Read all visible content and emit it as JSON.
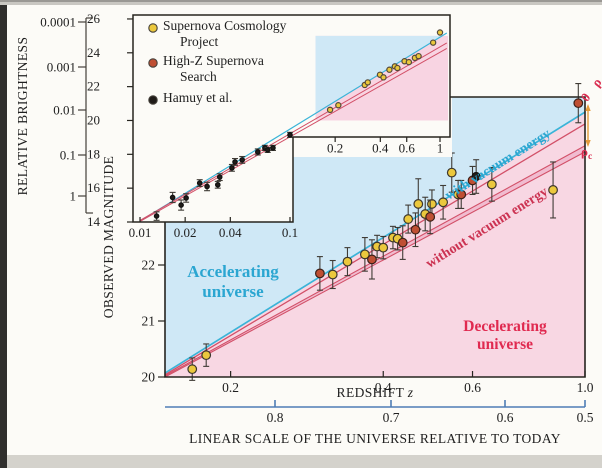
{
  "page": {
    "background": "#d4d2cc",
    "figure_background": "#fcfbf7",
    "left_edge_bar": "#302f2d"
  },
  "legend": {
    "items": [
      {
        "lines": [
          "Supernova Cosmology",
          "Project"
        ],
        "color": "#ebc83d",
        "marker": "circle"
      },
      {
        "lines": [
          "High-Z Supernova",
          "Search"
        ],
        "color": "#bf4f33",
        "marker": "circle"
      },
      {
        "lines": [
          "Hamuy et al."
        ],
        "color": "#1f1b18",
        "marker": "circle"
      }
    ]
  },
  "annotations": {
    "accelerating": [
      "Accelerating",
      "universe"
    ],
    "decelerating": [
      "Decelerating",
      "universe"
    ],
    "with_vacuum": "with vacuum energy",
    "without_vacuum": "without vacuum energy",
    "density_top": "0",
    "density_bottom_symbol": "ρ",
    "density_bottom_sub": "c",
    "observed_magnitude": "OBSERVED MAGNITUDE",
    "redshift_word": "REDSHIFT",
    "redshift_var": "z"
  },
  "brightness_axis": {
    "label": "RELATIVE BRIGHTNESS",
    "ticks": [
      "0.0001",
      "0.001",
      "0.01",
      "0.1",
      "1"
    ]
  },
  "scale_axis": {
    "label": "LINEAR SCALE OF THE UNIVERSE RELATIVE TO TODAY",
    "ticks": [
      "0.8",
      "0.7",
      "0.6",
      "0.5"
    ],
    "color": "#4e7cb5"
  },
  "chart_data": [
    {
      "id": "main-hubble-zoom",
      "type": "scatter",
      "xlabel": "REDSHIFT z",
      "ylabel": "OBSERVED MAGNITUDE",
      "xscale": "log",
      "xlim": [
        0.148,
        1.0
      ],
      "ylim": [
        20,
        25
      ],
      "grid": false,
      "xticks": [
        "0.2",
        "0.4",
        "0.6",
        "1.0"
      ],
      "xtick_values": [
        0.2,
        0.4,
        0.6,
        1.0
      ],
      "yticks": [
        "20",
        "21",
        "22"
      ],
      "ytick_values": [
        20,
        21,
        22
      ],
      "regions": [
        {
          "label": "Accelerating universe",
          "side": "above_with_vacuum_line",
          "fill": "#cfe8f6",
          "text_color": "#2ba6d1"
        },
        {
          "label": "Decelerating universe",
          "side": "below_with_vacuum_line",
          "fill": "#f8d7e3",
          "text_color": "#e02a50"
        }
      ],
      "lines": [
        {
          "label": "with vacuum energy",
          "color": "#3ab4d8",
          "width": 1.7,
          "points": [
            [
              0.148,
              20.07
            ],
            [
              1.0,
              24.73
            ]
          ]
        },
        {
          "label": "without vacuum energy, mass density 0",
          "color": "#d25068",
          "width": 1.3,
          "points": [
            [
              0.148,
              20.04
            ],
            [
              1.0,
              24.52
            ]
          ]
        },
        {
          "label": "without vacuum energy, mass density rho_c (upper)",
          "color": "#d25068",
          "width": 1.1,
          "points": [
            [
              0.148,
              20.02
            ],
            [
              1.0,
              24.13
            ]
          ]
        },
        {
          "label": "without vacuum energy, mass density rho_c (lower)",
          "color": "#d25068",
          "width": 1.1,
          "points": [
            [
              0.148,
              20.0
            ],
            [
              1.0,
              24.02
            ]
          ]
        }
      ],
      "band_between_rho_lines_fill": "#f1bcd0",
      "series": [
        {
          "name": "Supernova Cosmology Project",
          "marker": "circle",
          "color": "#ebc83d",
          "ring": "#3c362c",
          "points": [
            [
              0.168,
              20.14,
              0.2
            ],
            [
              0.179,
              20.39,
              0.2
            ],
            [
              0.318,
              21.83,
              0.25
            ],
            [
              0.34,
              22.06,
              0.25
            ],
            [
              0.368,
              22.19,
              0.3
            ],
            [
              0.389,
              22.33,
              0.2
            ],
            [
              0.4,
              22.31,
              0.2
            ],
            [
              0.418,
              22.49,
              0.2
            ],
            [
              0.427,
              22.47,
              0.2
            ],
            [
              0.448,
              22.82,
              0.25
            ],
            [
              0.469,
              23.09,
              0.45
            ],
            [
              0.484,
              22.91,
              0.3
            ],
            [
              0.499,
              23.09,
              0.25
            ],
            [
              0.525,
              23.12,
              0.3
            ],
            [
              0.546,
              23.65,
              0.35
            ],
            [
              0.562,
              23.26,
              0.25
            ],
            [
              0.655,
              23.44,
              0.3
            ],
            [
              0.865,
              23.34,
              0.5
            ]
          ]
        },
        {
          "name": "High-Z Supernova Search",
          "marker": "circle",
          "color": "#bf4f33",
          "ring": "#3c2018",
          "points": [
            [
              0.3,
              21.85,
              0.3
            ],
            [
              0.38,
              22.1,
              0.35
            ],
            [
              0.437,
              22.4,
              0.3
            ],
            [
              0.463,
              22.63,
              0.3
            ],
            [
              0.495,
              22.86,
              0.3
            ],
            [
              0.57,
              23.26,
              0.25
            ],
            [
              0.6,
              23.51,
              0.25
            ],
            [
              0.97,
              24.89,
              0.35
            ]
          ]
        },
        {
          "name": "dark point",
          "marker": "circle",
          "color": "#241f1b",
          "ring": "#161310",
          "points": [
            [
              0.61,
              23.58,
              0.3
            ]
          ]
        }
      ]
    },
    {
      "id": "inset-full-hubble",
      "type": "scatter",
      "xscale": "log",
      "xlim": [
        0.01,
        1.05
      ],
      "ylim": [
        14,
        26
      ],
      "ytick_values": [
        14,
        16,
        18,
        20,
        22,
        24,
        26
      ],
      "yticks": [
        "14",
        "16",
        "18",
        "20",
        "22",
        "24",
        "26"
      ],
      "xticks_lower": [
        "0.01",
        "0.02",
        "0.04",
        "0.1"
      ],
      "xtick_lower_values": [
        0.01,
        0.02,
        0.04,
        0.1
      ],
      "xticks_upper": [
        "0.2",
        "0.4",
        "0.6",
        "1"
      ],
      "xtick_upper_values": [
        0.2,
        0.4,
        0.6,
        1.0
      ],
      "zoom_region": {
        "x": [
          0.148,
          1.0
        ],
        "y": [
          20,
          25
        ],
        "fill_above": "#cfe8f6",
        "fill_below": "#f8d4e2"
      },
      "lines": [
        {
          "label": "with vacuum energy",
          "color": "#3ab4d8",
          "width": 1.2,
          "points": [
            [
              0.01,
              14.06
            ],
            [
              1.11,
              25.17
            ]
          ]
        },
        {
          "label": "without vacuum energy (upper)",
          "color": "#d25068",
          "width": 1.0,
          "points": [
            [
              0.01,
              14.09
            ],
            [
              1.11,
              24.58
            ]
          ]
        },
        {
          "label": "without vacuum energy (lower)",
          "color": "#d25068",
          "width": 1.0,
          "points": [
            [
              0.01,
              14.03
            ],
            [
              1.11,
              24.26
            ]
          ]
        }
      ],
      "series": [
        {
          "name": "Hamuy et al.",
          "marker": "circle",
          "color": "#1f1b18",
          "ring": "#111",
          "points": [
            [
              0.0129,
              14.35,
              0.25
            ],
            [
              0.0165,
              15.45,
              0.3
            ],
            [
              0.0188,
              15.0,
              0.3
            ],
            [
              0.0203,
              15.42,
              0.25
            ],
            [
              0.025,
              16.3,
              0.2
            ],
            [
              0.028,
              16.1,
              0.25
            ],
            [
              0.033,
              16.2,
              0.2
            ],
            [
              0.034,
              16.65,
              0.2
            ],
            [
              0.041,
              17.2,
              0.2
            ],
            [
              0.043,
              17.55,
              0.2
            ],
            [
              0.048,
              17.67,
              0.2
            ],
            [
              0.061,
              18.14,
              0.18
            ],
            [
              0.068,
              18.38,
              0.15
            ],
            [
              0.071,
              18.26,
              0.15
            ],
            [
              0.077,
              18.38,
              0.15
            ],
            [
              0.1,
              19.15,
              0.15
            ]
          ]
        },
        {
          "name": "high-redshift supernovae",
          "marker": "circle",
          "color": "#ebc83d",
          "ring": "#54493a",
          "points": [
            [
              0.185,
              20.63,
              0
            ],
            [
              0.21,
              20.9,
              0
            ],
            [
              0.315,
              22.1,
              0
            ],
            [
              0.33,
              22.25,
              0
            ],
            [
              0.398,
              22.7,
              0
            ],
            [
              0.42,
              22.55,
              0
            ],
            [
              0.46,
              23.0,
              0
            ],
            [
              0.5,
              23.2,
              0
            ],
            [
              0.52,
              23.1,
              0
            ],
            [
              0.58,
              23.5,
              0
            ],
            [
              0.62,
              23.45,
              0
            ],
            [
              0.68,
              23.7,
              0
            ],
            [
              0.72,
              23.8,
              0
            ],
            [
              0.9,
              24.6,
              0
            ],
            [
              1.0,
              25.2,
              0
            ]
          ]
        }
      ]
    }
  ]
}
